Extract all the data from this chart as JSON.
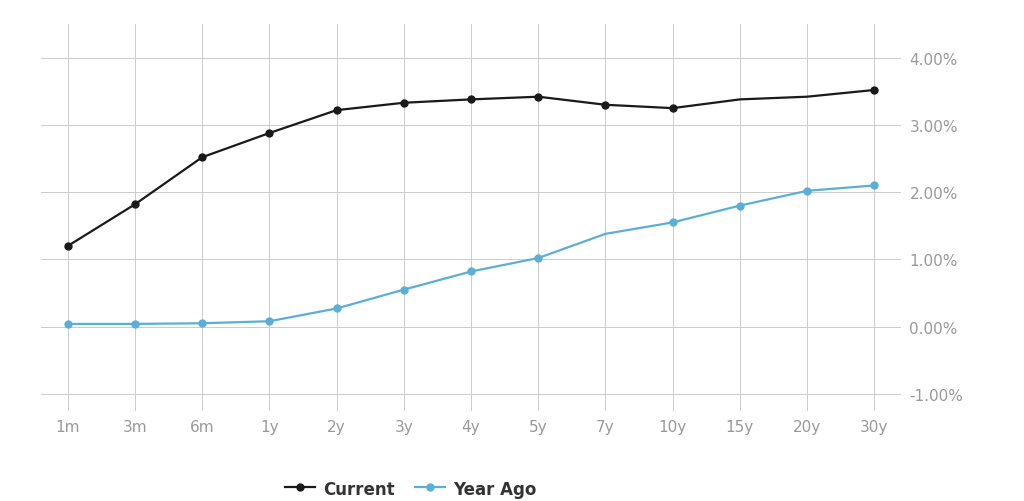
{
  "x_labels": [
    "1m",
    "3m",
    "6m",
    "1y",
    "2y",
    "3y",
    "4y",
    "5y",
    "7y",
    "10y",
    "15y",
    "20y",
    "30y"
  ],
  "current": [
    1.2,
    1.82,
    2.52,
    2.88,
    3.22,
    3.33,
    3.38,
    3.42,
    3.3,
    3.25,
    3.38,
    3.42,
    3.52
  ],
  "year_ago": [
    0.04,
    0.04,
    0.05,
    0.08,
    0.27,
    0.55,
    0.82,
    1.02,
    1.38,
    1.55,
    1.8,
    2.02,
    2.1
  ],
  "current_has_marker": [
    true,
    true,
    true,
    true,
    true,
    true,
    true,
    true,
    true,
    true,
    false,
    false,
    true
  ],
  "year_ago_has_marker": [
    true,
    true,
    true,
    true,
    true,
    true,
    true,
    true,
    false,
    true,
    true,
    true,
    true
  ],
  "current_color": "#1a1a1a",
  "year_ago_color": "#5bafd6",
  "background_color": "#ffffff",
  "grid_color": "#cccccc",
  "ylim": [
    -1.25,
    4.5
  ],
  "yticks": [
    -1.0,
    0.0,
    1.0,
    2.0,
    3.0,
    4.0
  ],
  "ytick_labels": [
    "-1.00%",
    "0.00%",
    "1.00%",
    "2.00%",
    "3.00%",
    "4.00%"
  ],
  "legend_current": "Current",
  "legend_year_ago": "Year Ago",
  "tick_fontsize": 11,
  "legend_fontsize": 12,
  "axis_label_color": "#999999"
}
